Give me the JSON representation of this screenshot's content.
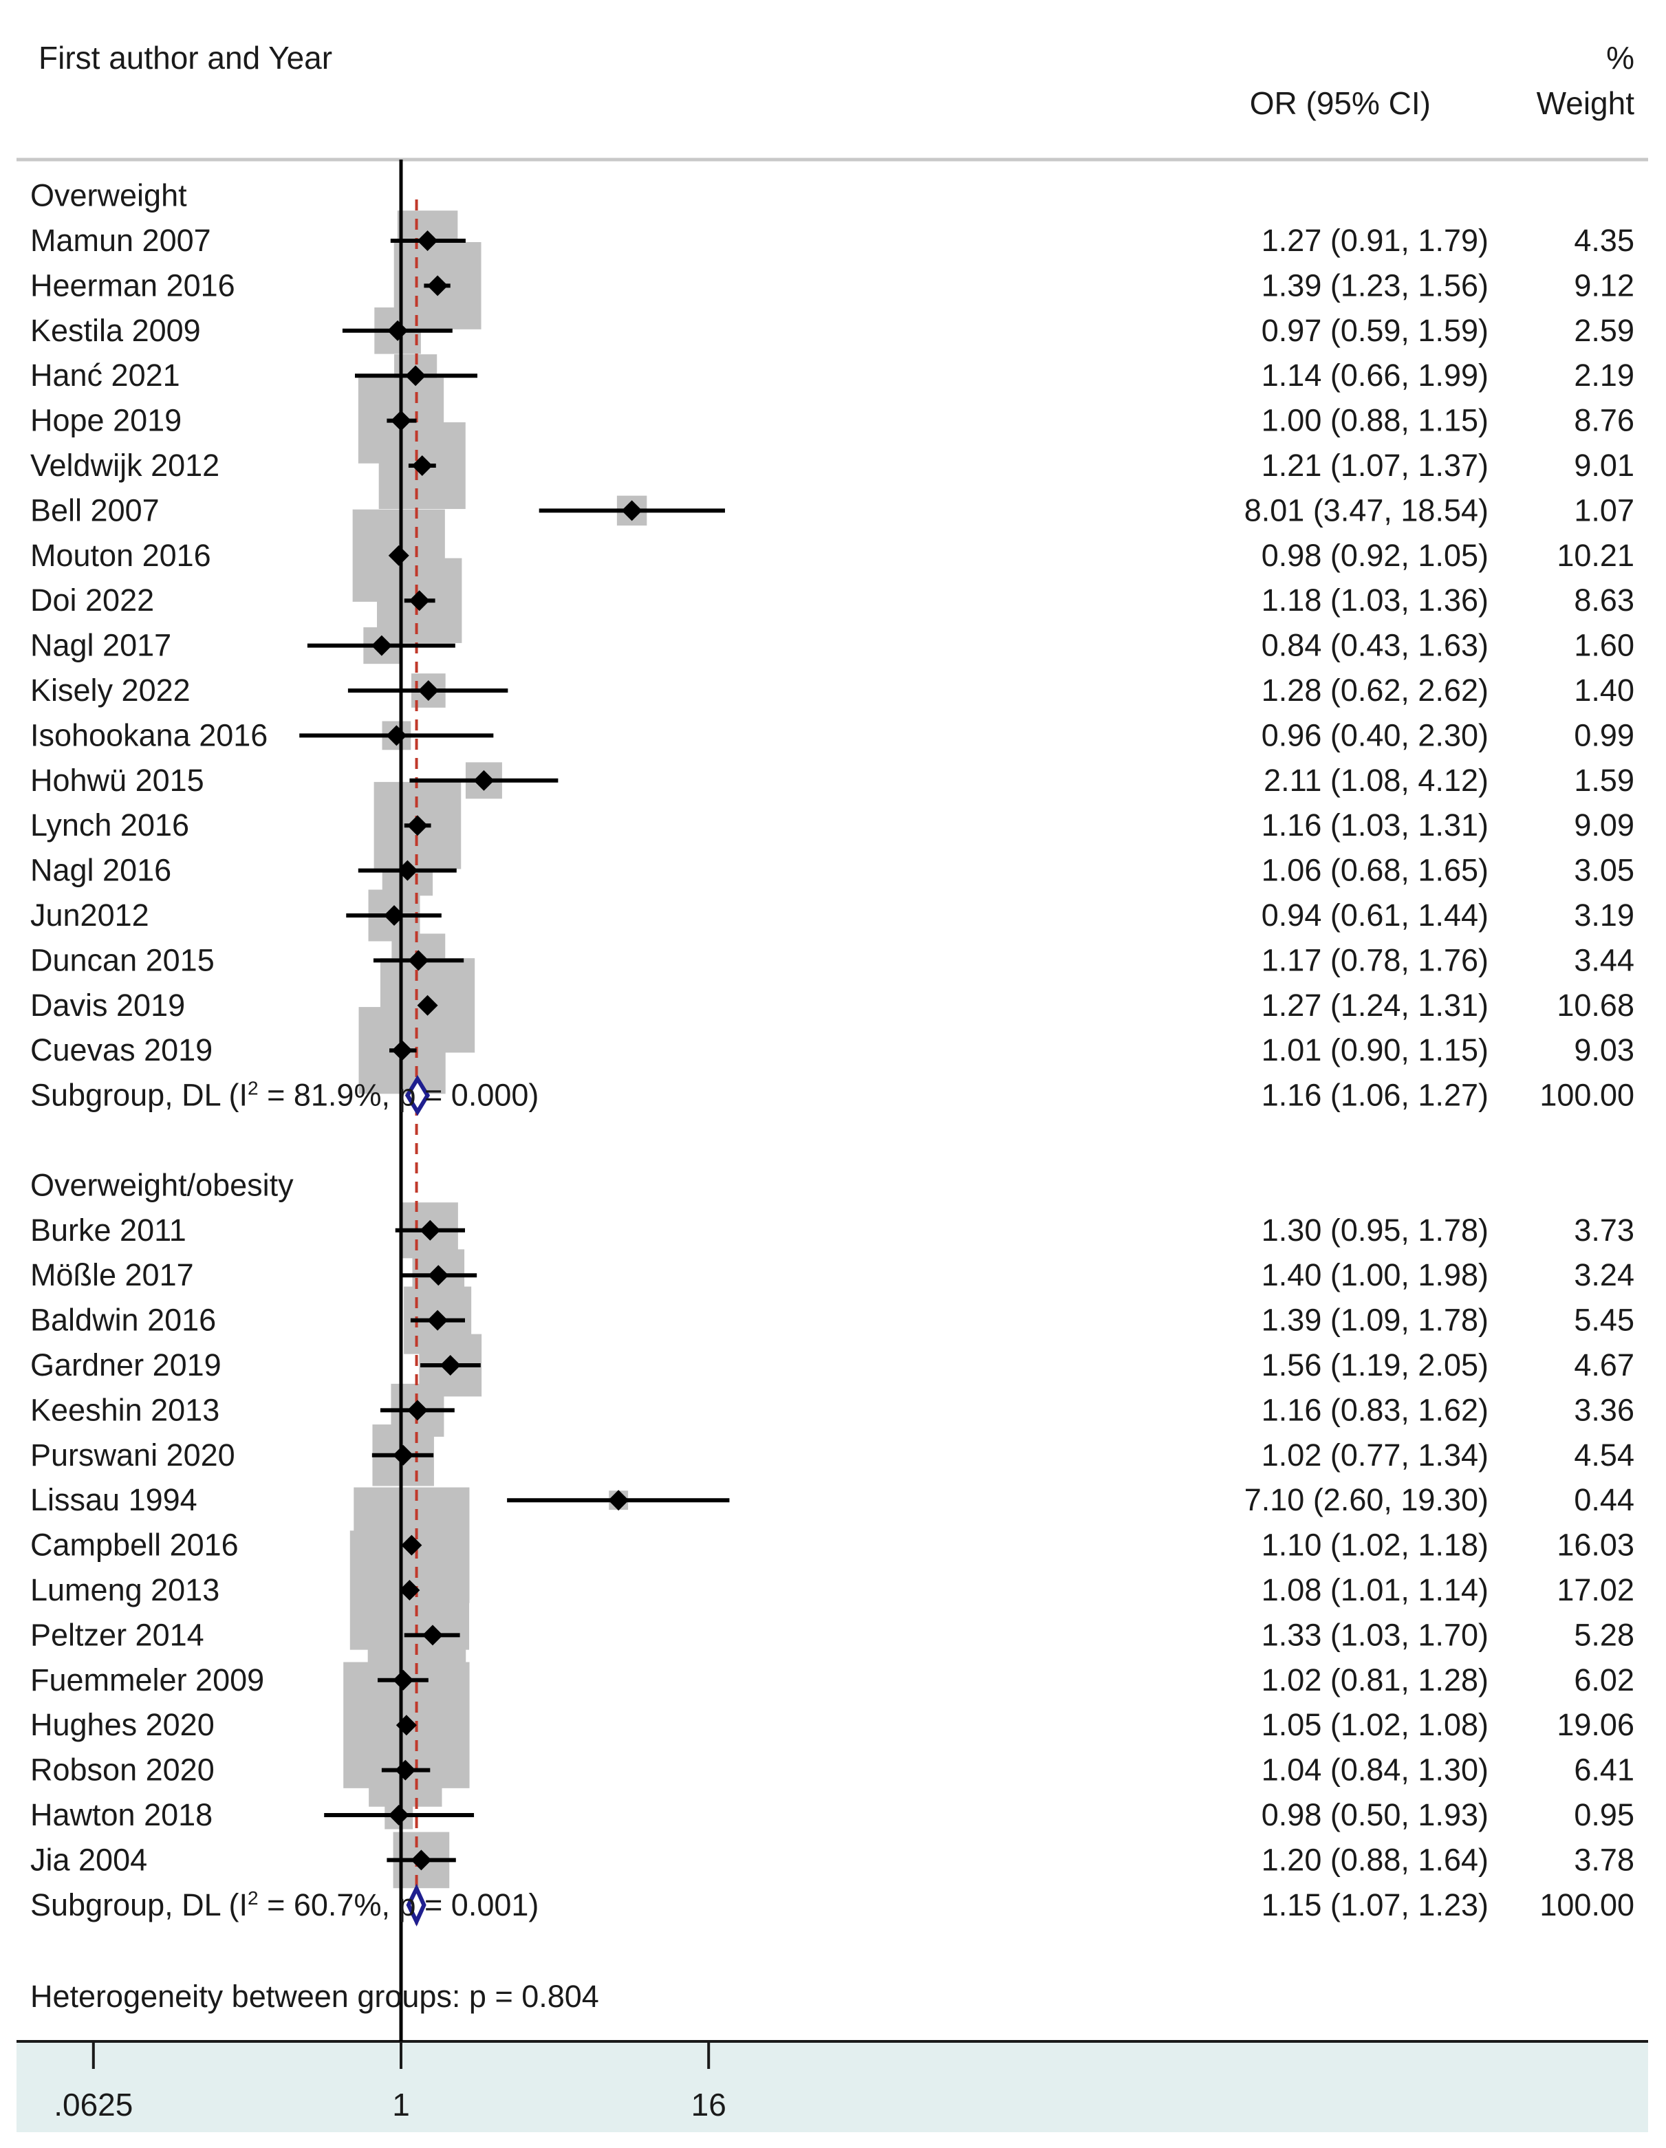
{
  "header": {
    "study_col": "First author and Year",
    "or_col": "OR (95% CI)",
    "weight_col_line1": "%",
    "weight_col_line2": "Weight"
  },
  "footer_note": "Heterogeneity between groups: p = 0.804",
  "colors": {
    "weight_box": "#c0c0c0",
    "point": "#000000",
    "summary_diamond": "#1f1f8f",
    "overall_line": "#c0392b",
    "axis_band": "#e3efef",
    "separator": "#c8c8c8"
  },
  "chart_data": {
    "type": "forest",
    "x_scale": "log2",
    "xlim": [
      0.03125,
      32
    ],
    "null_value": 1,
    "overall_effect": 1.15,
    "x_ticks": [
      {
        "value": 0.0625,
        "label": ".0625"
      },
      {
        "value": 1,
        "label": "1"
      },
      {
        "value": 16,
        "label": "16"
      }
    ],
    "groups": [
      {
        "name": "Overweight",
        "studies": [
          {
            "label": "Mamun 2007",
            "or": 1.27,
            "lo": 0.91,
            "hi": 1.79,
            "or_text": "1.27 (0.91, 1.79)",
            "weight": 4.35,
            "weight_text": "4.35"
          },
          {
            "label": "Heerman 2016",
            "or": 1.39,
            "lo": 1.23,
            "hi": 1.56,
            "or_text": "1.39 (1.23, 1.56)",
            "weight": 9.12,
            "weight_text": "9.12"
          },
          {
            "label": "Kestila 2009",
            "or": 0.97,
            "lo": 0.59,
            "hi": 1.59,
            "or_text": "0.97 (0.59, 1.59)",
            "weight": 2.59,
            "weight_text": "2.59"
          },
          {
            "label": "Hanć 2021",
            "or": 1.14,
            "lo": 0.66,
            "hi": 1.99,
            "or_text": "1.14 (0.66, 1.99)",
            "weight": 2.19,
            "weight_text": "2.19"
          },
          {
            "label": "Hope 2019",
            "or": 1.0,
            "lo": 0.88,
            "hi": 1.15,
            "or_text": "1.00 (0.88, 1.15)",
            "weight": 8.76,
            "weight_text": "8.76"
          },
          {
            "label": "Veldwijk 2012",
            "or": 1.21,
            "lo": 1.07,
            "hi": 1.37,
            "or_text": "1.21 (1.07, 1.37)",
            "weight": 9.01,
            "weight_text": "9.01"
          },
          {
            "label": "Bell 2007",
            "or": 8.01,
            "lo": 3.47,
            "hi": 18.54,
            "or_text": "8.01 (3.47, 18.54)",
            "weight": 1.07,
            "weight_text": "1.07"
          },
          {
            "label": "Mouton 2016",
            "or": 0.98,
            "lo": 0.92,
            "hi": 1.05,
            "or_text": "0.98 (0.92, 1.05)",
            "weight": 10.21,
            "weight_text": "10.21"
          },
          {
            "label": "Doi 2022",
            "or": 1.18,
            "lo": 1.03,
            "hi": 1.36,
            "or_text": "1.18 (1.03, 1.36)",
            "weight": 8.63,
            "weight_text": "8.63"
          },
          {
            "label": "Nagl 2017",
            "or": 0.84,
            "lo": 0.43,
            "hi": 1.63,
            "or_text": "0.84 (0.43, 1.63)",
            "weight": 1.6,
            "weight_text": "1.60"
          },
          {
            "label": "Kisely 2022",
            "or": 1.28,
            "lo": 0.62,
            "hi": 2.62,
            "or_text": "1.28 (0.62, 2.62)",
            "weight": 1.4,
            "weight_text": "1.40"
          },
          {
            "label": "Isohookana 2016",
            "or": 0.96,
            "lo": 0.4,
            "hi": 2.3,
            "or_text": "0.96 (0.40, 2.30)",
            "weight": 0.99,
            "weight_text": "0.99"
          },
          {
            "label": "Hohwü 2015",
            "or": 2.11,
            "lo": 1.08,
            "hi": 4.12,
            "or_text": "2.11 (1.08, 4.12)",
            "weight": 1.59,
            "weight_text": "1.59"
          },
          {
            "label": "Lynch 2016",
            "or": 1.16,
            "lo": 1.03,
            "hi": 1.31,
            "or_text": "1.16 (1.03, 1.31)",
            "weight": 9.09,
            "weight_text": "9.09"
          },
          {
            "label": "Nagl 2016",
            "or": 1.06,
            "lo": 0.68,
            "hi": 1.65,
            "or_text": "1.06 (0.68, 1.65)",
            "weight": 3.05,
            "weight_text": "3.05"
          },
          {
            "label": "Jun2012",
            "or": 0.94,
            "lo": 0.61,
            "hi": 1.44,
            "or_text": "0.94 (0.61, 1.44)",
            "weight": 3.19,
            "weight_text": "3.19"
          },
          {
            "label": "Duncan 2015",
            "or": 1.17,
            "lo": 0.78,
            "hi": 1.76,
            "or_text": "1.17 (0.78, 1.76)",
            "weight": 3.44,
            "weight_text": "3.44"
          },
          {
            "label": "Davis 2019",
            "or": 1.27,
            "lo": 1.24,
            "hi": 1.31,
            "or_text": "1.27 (1.24, 1.31)",
            "weight": 10.68,
            "weight_text": "10.68"
          },
          {
            "label": "Cuevas 2019",
            "or": 1.01,
            "lo": 0.9,
            "hi": 1.15,
            "or_text": "1.01 (0.90, 1.15)",
            "weight": 9.03,
            "weight_text": "9.03"
          }
        ],
        "subgroup": {
          "label_pre": "Subgroup, DL (I",
          "label_sup": "2",
          "label_post": " = 81.9%, p = 0.000)",
          "or": 1.16,
          "lo": 1.06,
          "hi": 1.27,
          "or_text": "1.16 (1.06, 1.27)",
          "weight_text": "100.00"
        }
      },
      {
        "name": "Overweight/obesity",
        "studies": [
          {
            "label": "Burke 2011",
            "or": 1.3,
            "lo": 0.95,
            "hi": 1.78,
            "or_text": "1.30 (0.95, 1.78)",
            "weight": 3.73,
            "weight_text": "3.73"
          },
          {
            "label": "Mößle 2017",
            "or": 1.4,
            "lo": 1.0,
            "hi": 1.98,
            "or_text": "1.40 (1.00, 1.98)",
            "weight": 3.24,
            "weight_text": "3.24"
          },
          {
            "label": "Baldwin 2016",
            "or": 1.39,
            "lo": 1.09,
            "hi": 1.78,
            "or_text": "1.39 (1.09, 1.78)",
            "weight": 5.45,
            "weight_text": "5.45"
          },
          {
            "label": "Gardner 2019",
            "or": 1.56,
            "lo": 1.19,
            "hi": 2.05,
            "or_text": "1.56 (1.19, 2.05)",
            "weight": 4.67,
            "weight_text": "4.67"
          },
          {
            "label": "Keeshin 2013",
            "or": 1.16,
            "lo": 0.83,
            "hi": 1.62,
            "or_text": "1.16 (0.83, 1.62)",
            "weight": 3.36,
            "weight_text": "3.36"
          },
          {
            "label": "Purswani 2020",
            "or": 1.02,
            "lo": 0.77,
            "hi": 1.34,
            "or_text": "1.02 (0.77, 1.34)",
            "weight": 4.54,
            "weight_text": "4.54"
          },
          {
            "label": "Lissau 1994",
            "or": 7.1,
            "lo": 2.6,
            "hi": 19.3,
            "or_text": "7.10 (2.60, 19.30)",
            "weight": 0.44,
            "weight_text": "0.44"
          },
          {
            "label": "Campbell 2016",
            "or": 1.1,
            "lo": 1.02,
            "hi": 1.18,
            "or_text": "1.10 (1.02, 1.18)",
            "weight": 16.03,
            "weight_text": "16.03"
          },
          {
            "label": "Lumeng 2013",
            "or": 1.08,
            "lo": 1.01,
            "hi": 1.14,
            "or_text": "1.08 (1.01, 1.14)",
            "weight": 17.02,
            "weight_text": "17.02"
          },
          {
            "label": "Peltzer 2014",
            "or": 1.33,
            "lo": 1.03,
            "hi": 1.7,
            "or_text": "1.33 (1.03, 1.70)",
            "weight": 5.28,
            "weight_text": "5.28"
          },
          {
            "label": "Fuemmeler 2009",
            "or": 1.02,
            "lo": 0.81,
            "hi": 1.28,
            "or_text": "1.02 (0.81, 1.28)",
            "weight": 6.02,
            "weight_text": "6.02"
          },
          {
            "label": "Hughes 2020",
            "or": 1.05,
            "lo": 1.02,
            "hi": 1.08,
            "or_text": "1.05 (1.02, 1.08)",
            "weight": 19.06,
            "weight_text": "19.06"
          },
          {
            "label": "Robson 2020",
            "or": 1.04,
            "lo": 0.84,
            "hi": 1.3,
            "or_text": "1.04 (0.84, 1.30)",
            "weight": 6.41,
            "weight_text": "6.41"
          },
          {
            "label": "Hawton 2018",
            "or": 0.98,
            "lo": 0.5,
            "hi": 1.93,
            "or_text": "0.98 (0.50, 1.93)",
            "weight": 0.95,
            "weight_text": "0.95"
          },
          {
            "label": "Jia 2004",
            "or": 1.2,
            "lo": 0.88,
            "hi": 1.64,
            "or_text": "1.20 (0.88, 1.64)",
            "weight": 3.78,
            "weight_text": "3.78"
          }
        ],
        "subgroup": {
          "label_pre": "Subgroup, DL (I",
          "label_sup": "2",
          "label_post": " = 60.7%, p = 0.001)",
          "or": 1.15,
          "lo": 1.07,
          "hi": 1.23,
          "or_text": "1.15 (1.07, 1.23)",
          "weight_text": "100.00"
        }
      }
    ]
  }
}
